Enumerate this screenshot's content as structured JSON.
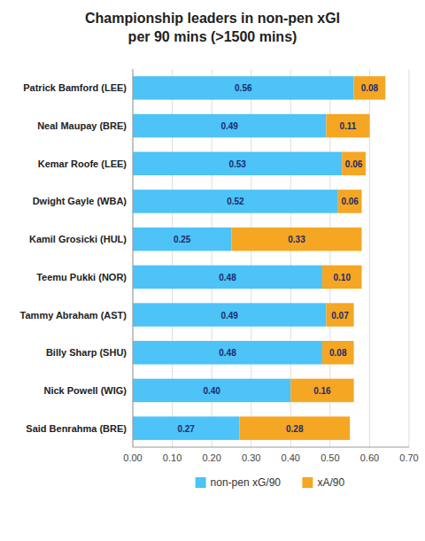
{
  "chart_data": {
    "type": "bar",
    "orientation": "horizontal",
    "stacked": true,
    "data_labels": true,
    "grid": true,
    "legend": "bottom",
    "title": "Championship leaders in non-pen xGI\nper 90 mins (>1500 mins)",
    "categories": [
      "Patrick Bamford (LEE)",
      "Neal Maupay (BRE)",
      "Kemar Roofe (LEE)",
      "Dwight Gayle (WBA)",
      "Kamil Grosicki (HUL)",
      "Teemu Pukki (NOR)",
      "Tammy Abraham (AST)",
      "Billy Sharp (SHU)",
      "Nick Powell (WIG)",
      "Said Benrahma (BRE)"
    ],
    "series": [
      {
        "name": "non-pen xG/90",
        "color": "#4DC3F7",
        "values": [
          0.56,
          0.49,
          0.53,
          0.52,
          0.25,
          0.48,
          0.49,
          0.48,
          0.4,
          0.27
        ],
        "value_labels": [
          "0.56",
          "0.49",
          "0.53",
          "0.52",
          "0.25",
          "0.48",
          "0.49",
          "0.48",
          "0.40",
          "0.27"
        ]
      },
      {
        "name": "xA/90",
        "color": "#F5A623",
        "values": [
          0.08,
          0.11,
          0.06,
          0.06,
          0.33,
          0.1,
          0.07,
          0.08,
          0.16,
          0.28
        ],
        "value_labels": [
          "0.08",
          "0.11",
          "0.06",
          "0.06",
          "0.33",
          "0.10",
          "0.07",
          "0.08",
          "0.16",
          "0.28"
        ]
      }
    ],
    "xlim": [
      0,
      0.7
    ],
    "xticks": [
      {
        "value": 0.0,
        "label": "0.00"
      },
      {
        "value": 0.1,
        "label": "0.10"
      },
      {
        "value": 0.2,
        "label": "0.20"
      },
      {
        "value": 0.3,
        "label": "0.30"
      },
      {
        "value": 0.4,
        "label": "0.40"
      },
      {
        "value": 0.5,
        "label": "0.50"
      },
      {
        "value": 0.6,
        "label": "0.60"
      },
      {
        "value": 0.7,
        "label": "0.70"
      }
    ]
  }
}
